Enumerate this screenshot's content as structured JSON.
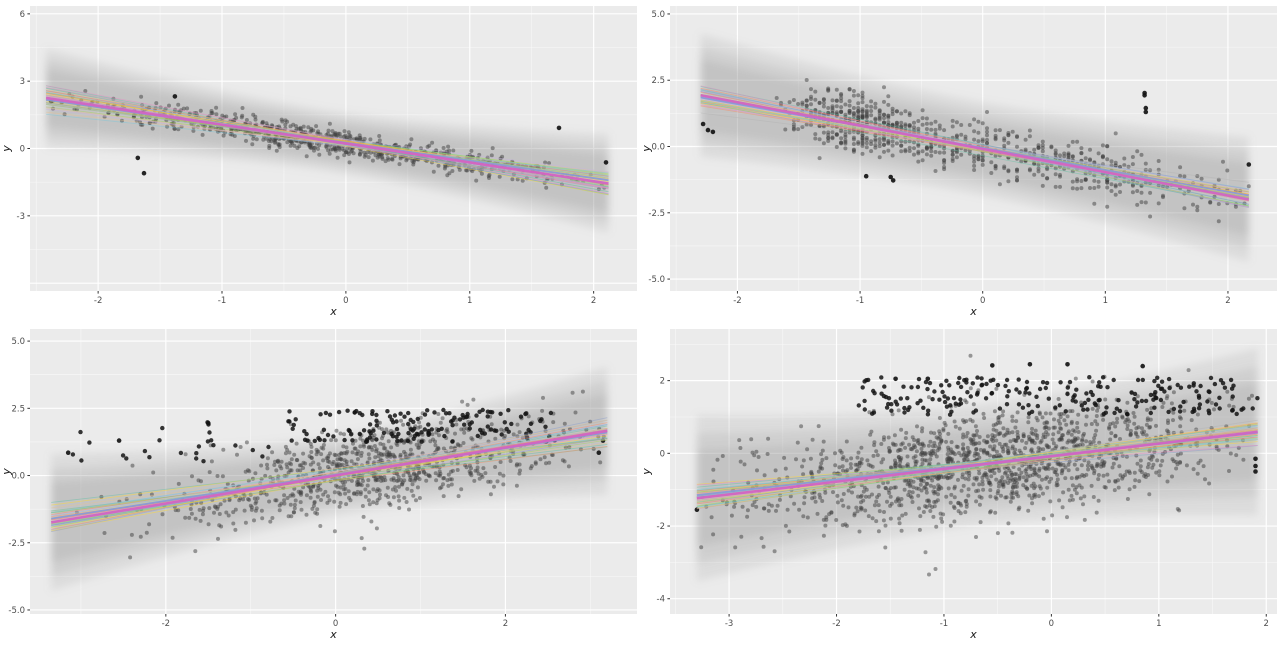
{
  "page": {
    "background": "#ffffff",
    "description": "2x2 grid of ggplot-style scatter plots with posterior regression line draws and confidence bands"
  },
  "colors": {
    "panel_background": "#EBEBEB",
    "grid_major": "#FFFFFF",
    "grid_minor": "#F7F7F7",
    "tick_label": "#4D4D4D",
    "axis_title": "#1a1a1a",
    "tick_mark": "#333333",
    "point_cloud": "#3f3f3f",
    "point_dark": "#141414",
    "band_fill": "#8C8C8C",
    "main_line": "#D264C3",
    "secondary_line": "#8799D6",
    "spaghetti_palette": [
      "#66C2A5",
      "#FC8D62",
      "#8DA0CB",
      "#E78AC3",
      "#A6D854",
      "#FFD92F",
      "#E5C494",
      "#B3B3B3",
      "#7FC8D8",
      "#C9B3E0"
    ]
  },
  "chart_data": [
    {
      "position": "top-left",
      "type": "scatter",
      "title": "",
      "xlabel": "x",
      "ylabel": "y",
      "x_range": [
        -2.55,
        2.35
      ],
      "y_range": [
        -6.35,
        6.35
      ],
      "x_tick_values": [
        -2,
        -1,
        0,
        1,
        2
      ],
      "x_tick_labels": [
        "-2",
        "-1",
        "0",
        "1",
        "2"
      ],
      "y_tick_values": [
        -3,
        0,
        3,
        6
      ],
      "y_tick_labels": [
        "-3",
        "0",
        "3",
        "6"
      ],
      "x_grid_extra": [],
      "y_grid_extra": [
        -6
      ],
      "x_minor": [
        -2.5,
        -1.5,
        -0.5,
        0.5,
        1.5
      ],
      "y_minor": [
        -4.5,
        -1.5,
        1.5,
        4.5
      ],
      "grid": true,
      "legend": "none",
      "seed": 101,
      "n_points_estimate": 860,
      "regression": {
        "slope": -0.84,
        "intercept": 0.22,
        "x_min": -2.42,
        "x_max": 2.12
      },
      "band": {
        "center_x": -0.15,
        "half_width_mid": 1.35,
        "half_width_end": 2.2
      },
      "spaghetti": {
        "count": 42,
        "slope_jitter": 0.13,
        "y_jitter": 0.1
      },
      "cloud": [
        {
          "n": 850,
          "x": {
            "dist": "normal",
            "mean": -0.15,
            "sd": 1.0,
            "min": -2.42,
            "max": 2.12
          },
          "y": {
            "mode": "line",
            "noise_sd": 0.27
          }
        }
      ],
      "dark_points": [
        [
          -2.38,
          2.1
        ],
        [
          -1.68,
          -0.42
        ],
        [
          -1.63,
          -1.1
        ],
        [
          -1.38,
          2.32
        ],
        [
          1.72,
          0.92
        ],
        [
          2.1,
          -0.62
        ]
      ]
    },
    {
      "position": "top-right",
      "type": "scatter",
      "title": "",
      "xlabel": "x",
      "ylabel": "y",
      "x_range": [
        -2.55,
        2.4
      ],
      "y_range": [
        -5.45,
        5.3
      ],
      "x_tick_values": [
        -2,
        -1,
        0,
        1,
        2
      ],
      "x_tick_labels": [
        "-2",
        "-1",
        "0",
        "1",
        "2"
      ],
      "y_tick_values": [
        -5,
        -2.5,
        0,
        2.5,
        5
      ],
      "y_tick_labels": [
        "-5.0",
        "-2.5",
        "0.0",
        "2.5",
        "5.0"
      ],
      "x_grid_extra": [],
      "y_grid_extra": [],
      "x_minor": [
        -2.5,
        -1.5,
        -0.5,
        0.5,
        1.5
      ],
      "y_minor": [
        -3.75,
        -1.25,
        1.25,
        3.75
      ],
      "grid": true,
      "legend": "none",
      "seed": 202,
      "n_points_estimate": 870,
      "regression": {
        "slope": -0.88,
        "intercept": -0.09,
        "x_min": -2.3,
        "x_max": 2.17
      },
      "band": {
        "center_x": -0.1,
        "half_width_mid": 1.75,
        "half_width_end": 2.35
      },
      "spaghetti": {
        "count": 42,
        "slope_jitter": 0.09,
        "y_jitter": 0.09
      },
      "cloud": [
        {
          "n": 530,
          "x": {
            "dist": "normal",
            "mean": 0.4,
            "sd": 0.95,
            "min": -1.75,
            "max": 2.17,
            "quantize": 0.035
          },
          "y": {
            "mode": "line",
            "noise_sd": 0.46
          }
        },
        {
          "n": 320,
          "x": {
            "dist": "normal",
            "mean": -1.03,
            "sd": 0.26,
            "min": -1.6,
            "max": -0.45,
            "quantize": 0.035
          },
          "y": {
            "mode": "line",
            "noise_sd": 0.55
          }
        }
      ],
      "dark_points": [
        [
          -2.28,
          0.85
        ],
        [
          -2.24,
          0.62
        ],
        [
          -2.2,
          0.55
        ],
        [
          1.32,
          2.02
        ],
        [
          1.32,
          1.93
        ],
        [
          1.33,
          1.45
        ],
        [
          1.33,
          1.3
        ],
        [
          -0.95,
          -1.12
        ],
        [
          -0.75,
          -1.15
        ],
        [
          -0.73,
          -1.28
        ],
        [
          2.17,
          -0.68
        ]
      ]
    },
    {
      "position": "bottom-left",
      "type": "scatter",
      "title": "",
      "xlabel": "x",
      "ylabel": "y",
      "x_range": [
        -3.6,
        3.55
      ],
      "y_range": [
        -5.15,
        5.45
      ],
      "x_tick_values": [
        -2,
        0,
        2
      ],
      "x_tick_labels": [
        "-2",
        "0",
        "2"
      ],
      "y_tick_values": [
        -5,
        -2.5,
        0,
        2.5,
        5
      ],
      "y_tick_labels": [
        "-5.0",
        "-2.5",
        "0.0",
        "2.5",
        "5.0"
      ],
      "x_grid_extra": [],
      "y_grid_extra": [],
      "x_minor": [
        -3,
        -1,
        1,
        3
      ],
      "y_minor": [
        -3.75,
        -1.25,
        1.25,
        3.75
      ],
      "grid": true,
      "legend": "none",
      "seed": 303,
      "n_points_estimate": 1120,
      "regression": {
        "slope": 0.52,
        "intercept": 0.0,
        "x_min": -3.35,
        "x_max": 3.2
      },
      "band": {
        "center_x": 0.1,
        "half_width_mid": 1.5,
        "half_width_end": 2.55
      },
      "spaghetti": {
        "count": 42,
        "slope_jitter": 0.1,
        "y_jitter": 0.12
      },
      "cloud": [
        {
          "n": 950,
          "x": {
            "dist": "normal",
            "mean": 0.45,
            "sd": 1.15,
            "min": -3.35,
            "max": 3.2
          },
          "y": {
            "mode": "line",
            "noise_sd": 0.72
          }
        },
        {
          "n": 150,
          "x": {
            "dist": "uniform",
            "min": -0.6,
            "max": 2.6
          },
          "y": {
            "dist": "uniform",
            "min": 1.25,
            "max": 2.45
          },
          "dark": true
        },
        {
          "n": 25,
          "x": {
            "dist": "uniform",
            "min": -3.1,
            "max": -0.6
          },
          "y": {
            "dist": "uniform",
            "min": 0.5,
            "max": 2.0
          },
          "dark": true
        }
      ],
      "dark_points": [
        [
          -3.15,
          0.85
        ],
        [
          -2.55,
          1.3
        ],
        [
          -1.5,
          1.95
        ],
        [
          3.15,
          1.3
        ],
        [
          3.1,
          0.85
        ]
      ]
    },
    {
      "position": "bottom-right",
      "type": "scatter",
      "title": "",
      "xlabel": "x",
      "ylabel": "y",
      "x_range": [
        -3.55,
        2.1
      ],
      "y_range": [
        -4.42,
        3.42
      ],
      "x_tick_values": [
        -3,
        -2,
        -1,
        0,
        1,
        2
      ],
      "x_tick_labels": [
        "-3",
        "-2",
        "-1",
        "0",
        "1",
        "2"
      ],
      "y_tick_values": [
        -4,
        -2,
        0,
        2
      ],
      "y_tick_labels": [
        "-4",
        "-2",
        "0",
        "2"
      ],
      "x_grid_extra": [],
      "y_grid_extra": [],
      "x_minor": [
        -3.5,
        -2.5,
        -1.5,
        -0.5,
        0.5,
        1.5
      ],
      "y_minor": [
        -3,
        -1,
        1,
        3
      ],
      "grid": true,
      "legend": "none",
      "seed": 404,
      "n_points_estimate": 1730,
      "regression": {
        "slope": 0.35,
        "intercept": -0.08,
        "x_min": -3.3,
        "x_max": 1.92
      },
      "band": {
        "center_x": -0.7,
        "half_width_mid": 1.65,
        "half_width_end": 2.3
      },
      "spaghetti": {
        "count": 42,
        "slope_jitter": 0.08,
        "y_jitter": 0.1
      },
      "cloud": [
        {
          "n": 1480,
          "x": {
            "dist": "normal",
            "mean": -0.55,
            "sd": 1.15,
            "min": -3.3,
            "max": 1.92
          },
          "y": {
            "mode": "line",
            "noise_sd": 0.72
          }
        },
        {
          "n": 220,
          "x": {
            "dist": "uniform",
            "min": -1.8,
            "max": 1.92
          },
          "y": {
            "dist": "uniform",
            "min": 1.05,
            "max": 2.1
          },
          "dark": true
        }
      ],
      "dark_points": [
        [
          -0.55,
          2.42
        ],
        [
          -0.2,
          2.45
        ],
        [
          0.15,
          2.45
        ],
        [
          -1.15,
          2.05
        ],
        [
          -1.45,
          2.05
        ],
        [
          0.85,
          2.4
        ],
        [
          1.9,
          -0.15
        ],
        [
          1.9,
          -0.35
        ],
        [
          1.9,
          -0.5
        ],
        [
          -3.3,
          -1.55
        ]
      ]
    }
  ]
}
